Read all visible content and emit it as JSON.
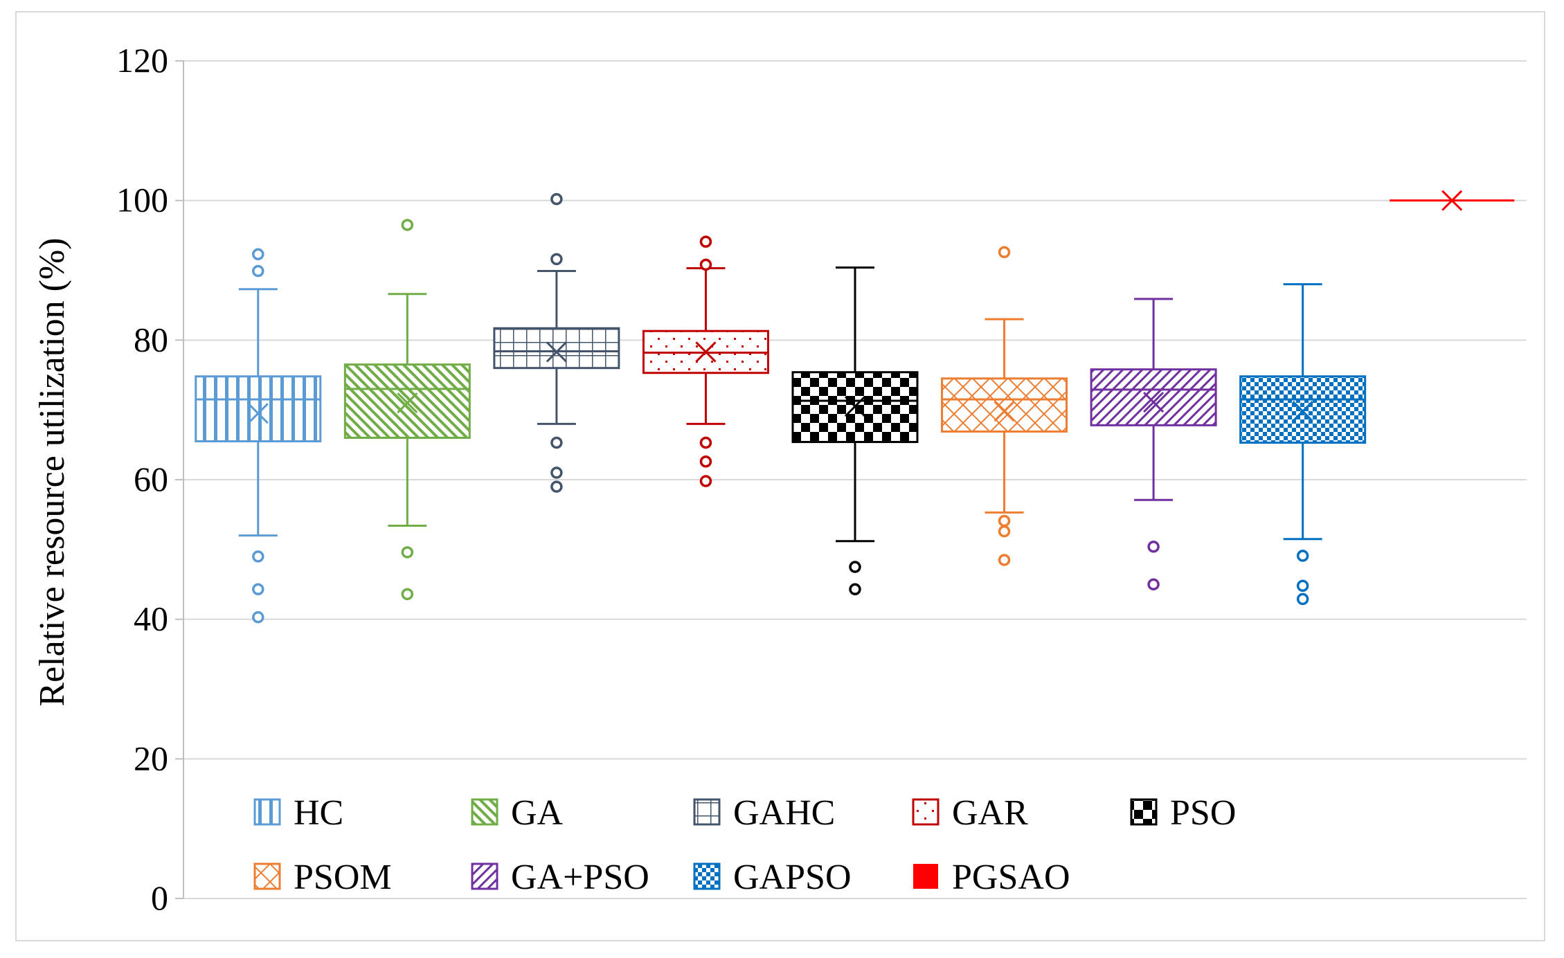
{
  "chart_data": {
    "type": "box",
    "title": "",
    "xlabel": "",
    "ylabel": "Relative resource utilization  (%)",
    "ylim": [
      0,
      120
    ],
    "yticks": [
      0,
      20,
      40,
      60,
      80,
      100,
      120
    ],
    "grid": true,
    "legend_position": "inside-bottom-left",
    "series": [
      {
        "name": "HC",
        "color": "#5b9bd5",
        "pattern": "vlines",
        "whisker_low": 52,
        "q1": 65.5,
        "median": 71.5,
        "q3": 74.8,
        "whisker_high": 87.3,
        "mean": 69.5,
        "outliers": [
          92.3,
          89.9,
          49.0,
          44.3,
          40.3
        ]
      },
      {
        "name": "GA",
        "color": "#70ad47",
        "pattern": "diagdown",
        "whisker_low": 53.4,
        "q1": 66,
        "median": 73,
        "q3": 76.5,
        "whisker_high": 86.6,
        "mean": 71,
        "outliers": [
          96.5,
          49.6,
          43.6
        ]
      },
      {
        "name": "GAHC",
        "color": "#44546a",
        "pattern": "grid",
        "whisker_low": 68,
        "q1": 76,
        "median": 78.4,
        "q3": 81.7,
        "whisker_high": 89.9,
        "mean": 78.3,
        "outliers": [
          100.2,
          91.6,
          65.3,
          61.0,
          59.0
        ]
      },
      {
        "name": "GAR",
        "color": "#c00000",
        "pattern": "dots",
        "whisker_low": 68,
        "q1": 75.3,
        "median": 78.2,
        "q3": 81.3,
        "whisker_high": 90.3,
        "mean": 78.3,
        "outliers": [
          94.1,
          90.8,
          65.3,
          62.6,
          59.8
        ]
      },
      {
        "name": "PSO",
        "color": "#000000",
        "pattern": "checker",
        "whisker_low": 51.2,
        "q1": 65.4,
        "median": 71.3,
        "q3": 75.4,
        "whisker_high": 90.4,
        "mean": 70.5,
        "outliers": [
          47.5,
          44.3
        ]
      },
      {
        "name": "PSOM",
        "color": "#ed7d31",
        "pattern": "cross",
        "whisker_low": 55.3,
        "q1": 66.9,
        "median": 71.5,
        "q3": 74.5,
        "whisker_high": 83.0,
        "mean": 69.8,
        "outliers": [
          92.6,
          54.1,
          52.6,
          48.5
        ]
      },
      {
        "name": "GA+PSO",
        "color": "#7030a0",
        "pattern": "diagup",
        "whisker_low": 57.1,
        "q1": 67.8,
        "median": 72.9,
        "q3": 75.8,
        "whisker_high": 85.9,
        "mean": 71.1,
        "outliers": [
          50.4,
          45.0
        ]
      },
      {
        "name": "GAPSO",
        "color": "#0070c0",
        "pattern": "smallchecker",
        "whisker_low": 51.5,
        "q1": 65.3,
        "median": 71.5,
        "q3": 74.8,
        "whisker_high": 88.0,
        "mean": 69.8,
        "outliers": [
          49.1,
          44.8,
          42.9
        ]
      },
      {
        "name": "PGSAO",
        "color": "#ff0000",
        "pattern": "solid",
        "whisker_low": 100,
        "q1": 100,
        "median": 100,
        "q3": 100,
        "whisker_high": 100,
        "mean": 100,
        "outliers": []
      }
    ]
  }
}
